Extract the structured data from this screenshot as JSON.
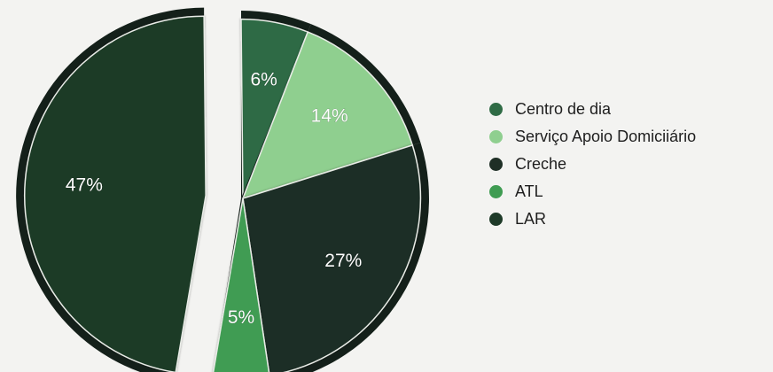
{
  "chart_data": {
    "type": "pie",
    "title": "",
    "series": [
      {
        "name": "Centro de dia",
        "value": 6,
        "label": "6%",
        "color": "#2f6b45"
      },
      {
        "name": "Serviço Apoio Domiciiário",
        "value": 14,
        "label": "14%",
        "color": "#8fcf8f"
      },
      {
        "name": "Creche",
        "value": 27,
        "label": "27%",
        "color": "#1f2f26"
      },
      {
        "name": "ATL",
        "value": 5,
        "label": "5%",
        "color": "#3f9c52"
      },
      {
        "name": "LAR",
        "value": 47,
        "label": "47%",
        "color": "#1e3a28"
      }
    ],
    "legend_position": "right",
    "exploded": "LAR"
  },
  "legend": {
    "items": [
      {
        "label": "Centro de dia",
        "color": "#2f6b45"
      },
      {
        "label": "Serviço Apoio Domiciiário",
        "color": "#8fcf8f"
      },
      {
        "label": "Creche",
        "color": "#1f2f26"
      },
      {
        "label": "ATL",
        "color": "#3f9c52"
      },
      {
        "label": "LAR",
        "color": "#1e3a28"
      }
    ]
  }
}
